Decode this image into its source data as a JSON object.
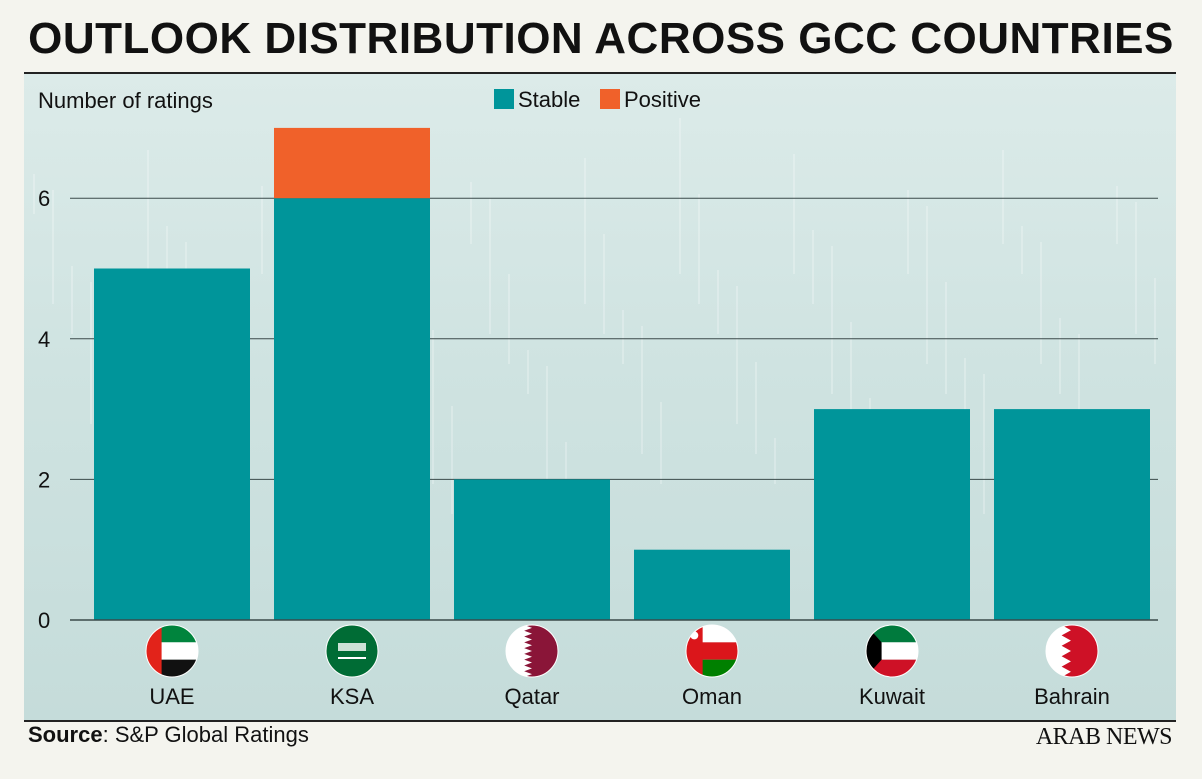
{
  "title": "OUTLOOK DISTRIBUTION ACROSS GCC COUNTRIES",
  "source": {
    "label": "Source",
    "text": ": S&P Global Ratings"
  },
  "brand": "ARAB NEWS",
  "chart_data": {
    "type": "bar",
    "stacked": true,
    "ylabel": "Number of ratings",
    "ylim": [
      0,
      7
    ],
    "yticks": [
      0,
      2,
      4,
      6
    ],
    "grid": true,
    "legend_position": "top-center",
    "categories": [
      "UAE",
      "KSA",
      "Qatar",
      "Oman",
      "Kuwait",
      "Bahrain"
    ],
    "series": [
      {
        "name": "Stable",
        "values": [
          5,
          6,
          2,
          1,
          3,
          3
        ],
        "color": "#00959a"
      },
      {
        "name": "Positive",
        "values": [
          0,
          1,
          0,
          0,
          0,
          0
        ],
        "color": "#f0612a"
      }
    ],
    "flag_icons": [
      "uae-flag-icon",
      "ksa-flag-icon",
      "qatar-flag-icon",
      "oman-flag-icon",
      "kuwait-flag-icon",
      "bahrain-flag-icon"
    ]
  }
}
